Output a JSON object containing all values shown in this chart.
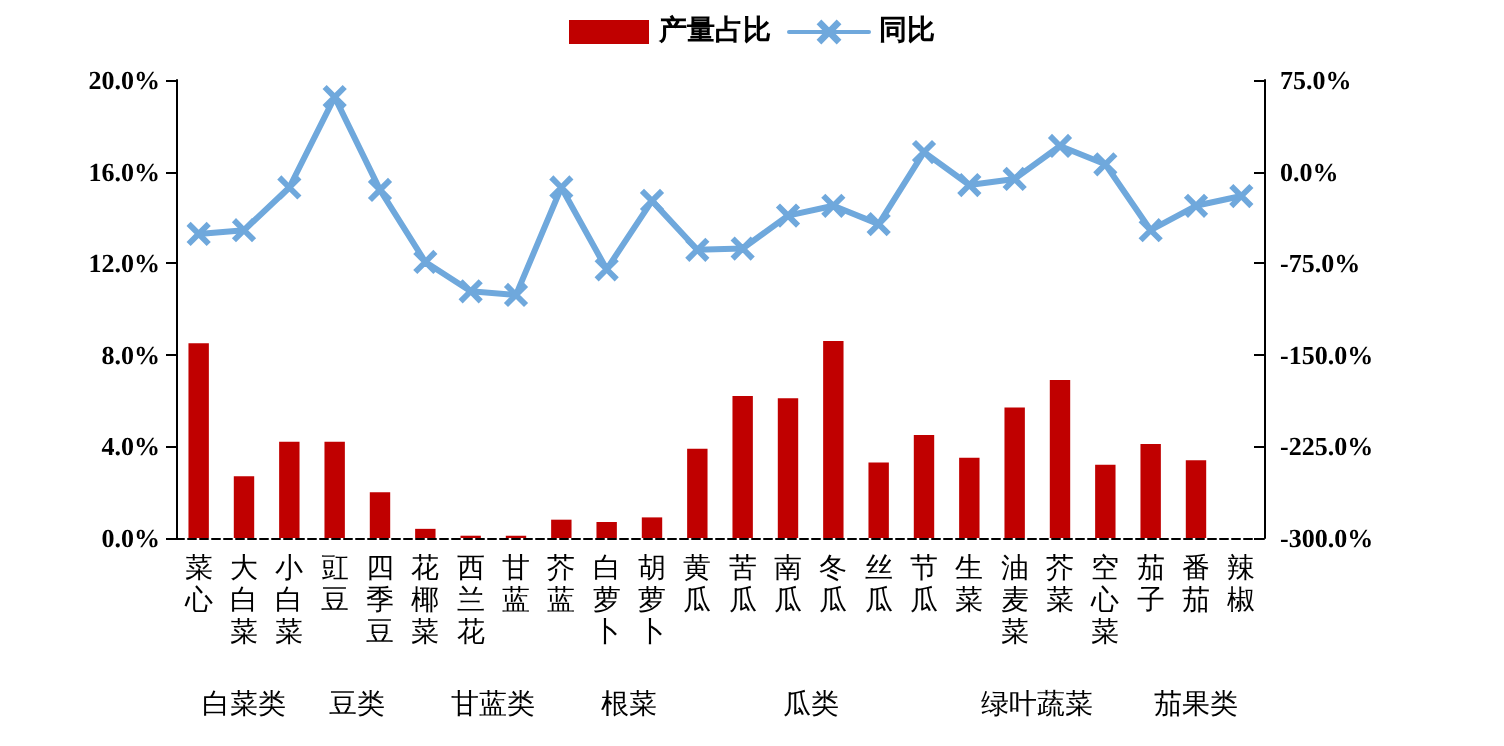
{
  "chart_data": {
    "type": "bar",
    "categories": [
      "菜心",
      "大白菜",
      "小白菜",
      "豇豆",
      "四季豆",
      "花椰菜",
      "西兰花",
      "甘蓝",
      "芥蓝",
      "白萝卜",
      "胡萝卜",
      "黄瓜",
      "苦瓜",
      "南瓜",
      "冬瓜",
      "丝瓜",
      "节瓜",
      "生菜",
      "油麦菜",
      "芥菜",
      "空心菜",
      "茄子",
      "番茄",
      "辣椒"
    ],
    "series": [
      {
        "name": "产量占比",
        "color": "#c00000",
        "values": [
          8.5,
          2.7,
          4.2,
          4.2,
          2.0,
          0.4,
          0.1,
          0.1,
          0.8,
          0.7,
          0.9,
          3.9,
          6.2,
          6.1,
          8.6,
          3.3,
          4.5,
          3.5,
          5.7,
          6.9,
          3.2,
          4.1,
          3.4,
          null
        ]
      },
      {
        "name": "同比",
        "type": "line",
        "axis": "y2",
        "color": "#6fa8dc",
        "marker": "cross",
        "values": [
          -51,
          -48,
          -13,
          61,
          -15,
          -74,
          -98,
          -101,
          -13,
          -80,
          -24,
          -64,
          -63,
          -36,
          -28,
          -43,
          16,
          -11,
          -6,
          21,
          6,
          -48,
          -28,
          -20
        ]
      }
    ],
    "ylim": [
      0,
      20
    ],
    "yticks": [
      {
        "value": 0,
        "label": "0.0%"
      },
      {
        "value": 4,
        "label": "4.0%"
      },
      {
        "value": 8,
        "label": "8.0%"
      },
      {
        "value": 12,
        "label": "12.0%"
      },
      {
        "value": 16,
        "label": "16.0%"
      },
      {
        "value": 20,
        "label": "20.0%"
      }
    ],
    "y2lim": [
      -300,
      75
    ],
    "y2ticks": [
      {
        "value": -300,
        "label": "-300.0%"
      },
      {
        "value": -225,
        "label": "-225.0%"
      },
      {
        "value": -150,
        "label": "-150.0%"
      },
      {
        "value": -75,
        "label": "-75.0%"
      },
      {
        "value": 0,
        "label": "0.0%"
      },
      {
        "value": 75,
        "label": "75.0%"
      }
    ],
    "annotations": [
      "白菜类",
      "豆类",
      "甘蓝类",
      "根菜",
      "瓜类",
      "绿叶蔬菜",
      "茄果类"
    ],
    "legend": "top",
    "grid": false
  }
}
